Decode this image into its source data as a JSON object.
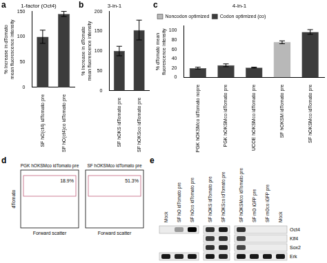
{
  "chart_data": [
    {
      "panel": "a",
      "type": "bar",
      "title": "1-factor (Oct4)",
      "y_label": [
        "% Increase in dTomato",
        "mean fluorescence intensity"
      ],
      "categories": [
        "SF hO(ct4) idTomato pre",
        "SF hO(ct4)co idTomato pre"
      ],
      "values": [
        100,
        145
      ],
      "errors": [
        13,
        5
      ],
      "color": "#3c3c3c",
      "ylim": [
        0,
        150
      ],
      "yticks": [
        0,
        50,
        100,
        150
      ],
      "grid": false
    },
    {
      "panel": "b",
      "type": "bar",
      "title": "3-in-1",
      "y_label": [
        "% Increase in dTomato",
        "mean fluorescence intensity"
      ],
      "categories": [
        "SF hOKS idTomato pre",
        "SF hOKSco idTomato pre"
      ],
      "values": [
        100,
        153
      ],
      "errors": [
        12,
        25
      ],
      "color": "#3c3c3c",
      "ylim": [
        0,
        200
      ],
      "yticks": [
        0,
        50,
        100,
        150,
        200
      ],
      "grid": false
    },
    {
      "panel": "c",
      "type": "bar",
      "title": "4-in-1",
      "y_label": [
        "% dTomato mean",
        "fluorescence intensity"
      ],
      "categories": [
        "PGK hOKSMco idTomato nopre",
        "PGK hOKSMco idTomato pre",
        "UCOE hOKSMco idTomato pre",
        "SF hOKSM idTomato pre",
        "SF hOKSMco idTomato pre"
      ],
      "series": [
        {
          "name": "Noncodon optimized",
          "color": "#b8b8b8",
          "values": [
            null,
            null,
            null,
            75,
            null
          ],
          "errors": [
            null,
            null,
            null,
            3,
            null
          ]
        },
        {
          "name": "Codon optimized (co)",
          "color": "#3c3c3c",
          "values": [
            20,
            26,
            21,
            null,
            97
          ],
          "errors": [
            2,
            3,
            1,
            null,
            5
          ]
        }
      ],
      "ylim": [
        0,
        110
      ],
      "yticks": [
        0,
        20,
        40,
        60,
        80,
        100
      ],
      "grid": false,
      "legend": "top-left"
    }
  ],
  "flow": {
    "panel": "d",
    "y_label": "dTomato",
    "x_label": "Forward scatter",
    "plots": [
      {
        "title": "PGK hOKSMco idTomato pre",
        "gate_label": "18.9%"
      },
      {
        "title": "SF hOKSMco idTomato pre",
        "gate_label": "51.3%"
      }
    ]
  },
  "blot": {
    "panel": "e",
    "row_labels": [
      "Oct4",
      "Klf4",
      "Sox2",
      "Erk"
    ],
    "groups": [
      {
        "lanes": [
          "Mock",
          "SF hO idTomato pre",
          "SF hOco idTomato pre"
        ],
        "bands": [
          [
            0,
            0.35,
            1
          ],
          null,
          null,
          [
            0.9,
            0.85,
            0.9
          ]
        ]
      },
      {
        "lanes": [
          "SF hOKS idTomato pre",
          "SF hOKSco idTomato pre"
        ],
        "bands": [
          [
            0.8,
            0.9
          ],
          [
            0.75,
            0.8
          ],
          [
            0.8,
            0.85
          ],
          [
            0.9,
            0.85
          ]
        ]
      },
      {
        "lanes": [
          "SF hOKSMco idTomato pre",
          "SF mO iGFP pre",
          "SF mOco iGFP pre",
          "Mock"
        ],
        "bands": [
          [
            0.8,
            0,
            0,
            0
          ],
          [
            0.7,
            0,
            0,
            0
          ],
          [
            0.7,
            0,
            0,
            0
          ],
          [
            0.9,
            0.9,
            0.9,
            0.9
          ]
        ]
      }
    ]
  }
}
